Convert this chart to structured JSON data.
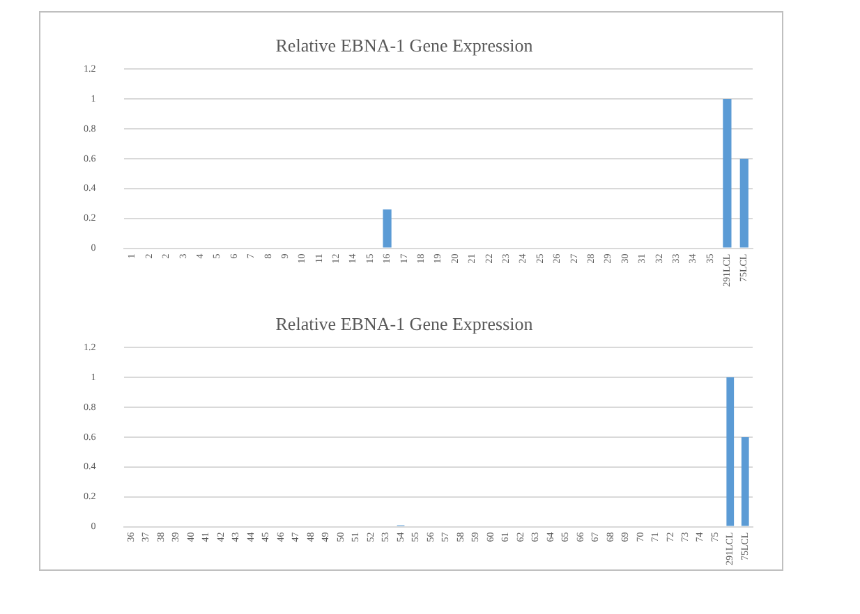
{
  "chart_data": [
    {
      "type": "bar",
      "title": "Relative EBNA-1 Gene Expression",
      "categories": [
        "1",
        "2",
        "2",
        "3",
        "4",
        "5",
        "6",
        "7",
        "8",
        "9",
        "10",
        "11",
        "12",
        "14",
        "15",
        "16",
        "17",
        "18",
        "19",
        "20",
        "21",
        "22",
        "23",
        "24",
        "25",
        "26",
        "27",
        "28",
        "29",
        "30",
        "31",
        "32",
        "33",
        "34",
        "35",
        "291LCL",
        "75LCL"
      ],
      "values": [
        0,
        0,
        0,
        0,
        0,
        0,
        0,
        0,
        0,
        0,
        0,
        0,
        0,
        0,
        0,
        0.26,
        0,
        0,
        0,
        0,
        0,
        0,
        0,
        0,
        0,
        0,
        0,
        0,
        0,
        0,
        0,
        0,
        0,
        0,
        0,
        1,
        0.6
      ],
      "color": "#5b9bd5",
      "ylim": [
        0,
        1.2
      ],
      "yticks": [
        0,
        0.2,
        0.4,
        0.6,
        0.8,
        1,
        1.2
      ],
      "grid": "y"
    },
    {
      "type": "bar",
      "title": "Relative EBNA-1 Gene Expression",
      "categories": [
        "36",
        "37",
        "38",
        "39",
        "40",
        "41",
        "42",
        "43",
        "44",
        "45",
        "46",
        "47",
        "48",
        "49",
        "50",
        "51",
        "52",
        "53",
        "54",
        "55",
        "56",
        "57",
        "58",
        "59",
        "60",
        "61",
        "62",
        "63",
        "64",
        "65",
        "66",
        "67",
        "68",
        "69",
        "70",
        "71",
        "72",
        "73",
        "74",
        "75",
        "291LCL",
        "75LCL"
      ],
      "values": [
        0,
        0,
        0,
        0,
        0,
        0,
        0,
        0,
        0,
        0,
        0,
        0,
        0,
        0,
        0,
        0,
        0,
        0,
        0.01,
        0,
        0,
        0,
        0,
        0,
        0,
        0,
        0,
        0,
        0,
        0,
        0,
        0,
        0,
        0,
        0,
        0,
        0,
        0,
        0,
        0,
        1,
        0.6
      ],
      "color": "#5b9bd5",
      "ylim": [
        0,
        1.2
      ],
      "yticks": [
        0,
        0.2,
        0.4,
        0.6,
        0.8,
        1,
        1.2
      ],
      "grid": "y"
    }
  ]
}
